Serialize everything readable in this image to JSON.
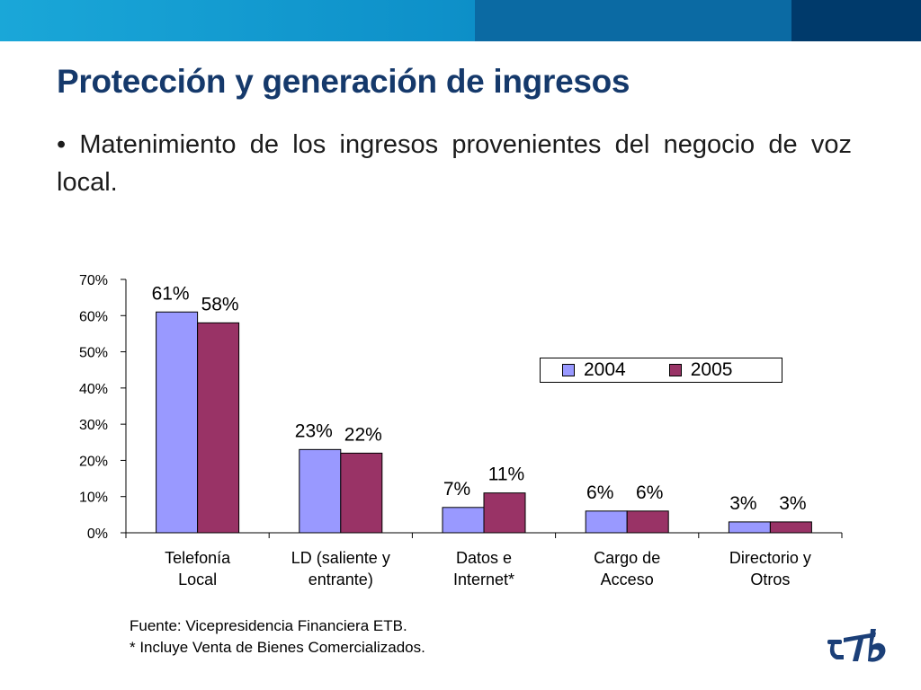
{
  "slide": {
    "title": "Protección y generación de ingresos",
    "bullet": "• Matenimiento de los ingresos provenientes del negocio de voz local.",
    "source_note": "Fuente: Vicepresidencia Financiera ETB.",
    "footnote": "* Incluye Venta de Bienes Comercializados.",
    "logo_icon": "etb-logo-icon",
    "colors": {
      "title": "#15396b",
      "band_light": "#1aa7d8",
      "band_mid": "#0b6aa3",
      "band_dark": "#003a6b"
    }
  },
  "chart_data": {
    "type": "bar",
    "categories": [
      [
        "Telefonía",
        "Local"
      ],
      [
        "LD (saliente y",
        "entrante)"
      ],
      [
        "Datos e",
        "Internet*"
      ],
      [
        "Cargo de",
        "Acceso"
      ],
      [
        "Directorio y",
        "Otros"
      ]
    ],
    "series": [
      {
        "name": "2004",
        "color": "#9999ff",
        "values": [
          61,
          23,
          7,
          6,
          3
        ],
        "labels": [
          "61%",
          "23%",
          "7%",
          "6%",
          "3%"
        ]
      },
      {
        "name": "2005",
        "color": "#993366",
        "values": [
          58,
          22,
          11,
          6,
          3
        ],
        "labels": [
          "58%",
          "22%",
          "11%",
          "6%",
          "3%"
        ]
      }
    ],
    "ylim": [
      0,
      70
    ],
    "yticks": [
      "0%",
      "10%",
      "20%",
      "30%",
      "40%",
      "50%",
      "60%",
      "70%"
    ],
    "grid": false,
    "legend_position": "right, inside plot"
  }
}
